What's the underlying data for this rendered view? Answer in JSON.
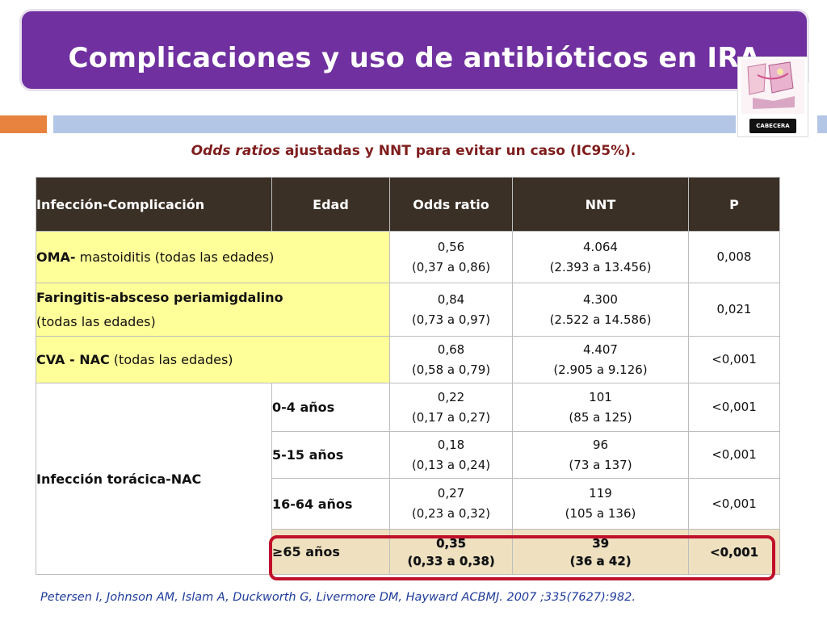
{
  "slide": {
    "title": "Complicaciones  y uso de antibióticos en IRA",
    "subtitle_italic": "Odds ratios",
    "subtitle_rest": " ajustadas y NNT para evitar un caso (IC95%).",
    "logo_text": "CABECERA",
    "citation": "Petersen I, Johnson AM, Islam A, Duckworth G, Livermore DM, Hayward ACBMJ. 2007 ;335(7627):982."
  },
  "colors": {
    "title_bg": "#7030a0",
    "header_bg": "#3b3026",
    "yellow_cells": "#ffff99",
    "highlight_row": "#efe1bf",
    "highlight_border": "#c0102a",
    "citation": "#1f3c9a",
    "subtitle": "#7f1d1d"
  },
  "table": {
    "headers": [
      "Infección-Complicación",
      "Edad",
      "Odds ratio",
      "NNT",
      "P"
    ],
    "rows": [
      {
        "label_bold": "OMA-",
        "label_normal": " mastoiditis (todas las edades)",
        "or": "0,56",
        "or_ci": "(0,37 a 0,86)",
        "nnt": "4.064",
        "nnt_ci": "(2.393 a 13.456)",
        "p": "0,008"
      },
      {
        "label_bold": "Faringitis-absceso periamigdalino",
        "label_normal": "(todas las edades)",
        "or": "0,84",
        "or_ci": "(0,73 a 0,97)",
        "nnt": "4.300",
        "nnt_ci": "(2.522 a 14.586)",
        "p": "0,021"
      },
      {
        "label_bold": "CVA - NAC",
        "label_normal": " (todas las edades)",
        "or": "0,68",
        "or_ci": "(0,58 a 0,79)",
        "nnt": "4.407",
        "nnt_ci": "(2.905 a 9.126)",
        "p": "<0,001"
      }
    ],
    "group_label": "Infección torácica-NAC",
    "age_rows": [
      {
        "age": "0-4 años",
        "or": "0,22",
        "or_ci": "(0,17 a 0,27)",
        "nnt": "101",
        "nnt_ci": "(85 a 125)",
        "p": "<0,001"
      },
      {
        "age": "5-15 años",
        "or": "0,18",
        "or_ci": "(0,13 a 0,24)",
        "nnt": "96",
        "nnt_ci": "(73 a 137)",
        "p": "<0,001"
      },
      {
        "age": "16-64 años",
        "or": "0,27",
        "or_ci": "(0,23 a 0,32)",
        "nnt": "119",
        "nnt_ci": "(105 a 136)",
        "p": "<0,001"
      },
      {
        "age": "≥65 años",
        "or": "0,35",
        "or_ci": "(0,33 a 0,38)",
        "nnt": "39",
        "nnt_ci": "(36 a 42)",
        "p": "<0,001"
      }
    ]
  }
}
